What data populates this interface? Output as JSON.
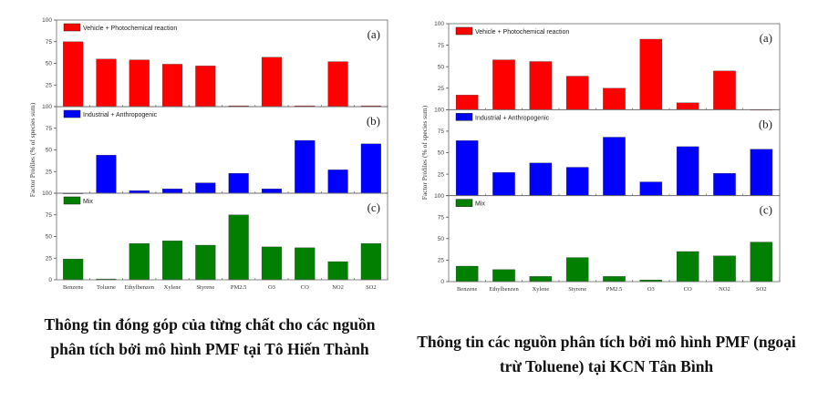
{
  "chart_data": [
    {
      "type": "bar",
      "ylabel": "Factor Profiles (% of species sum)",
      "ylim": [
        0,
        100
      ],
      "yticks": [
        "0",
        "25",
        "50",
        "75",
        "100"
      ],
      "categories": [
        "Benzene",
        "Toluene",
        "Ethylbenzen",
        "Xylene",
        "Styrene",
        "PM2.5",
        "O3",
        "CO",
        "NO2",
        "SO2"
      ],
      "series": [
        {
          "name": "Vehicle + Photochemical reaction",
          "panel": "(a)",
          "color": "#ff0000",
          "values": [
            75,
            55,
            54,
            49,
            47,
            1,
            57,
            1,
            52,
            1
          ]
        },
        {
          "name": "Industrial + Anthropogenic",
          "panel": "(b)",
          "color": "#0000ff",
          "values": [
            0,
            44,
            3,
            5,
            12,
            23,
            5,
            61,
            27,
            57
          ]
        },
        {
          "name": "Mix",
          "panel": "(c)",
          "color": "#007f00",
          "values": [
            24,
            1,
            42,
            45,
            40,
            75,
            38,
            37,
            21,
            42
          ]
        }
      ],
      "caption": "Thông tin đóng góp của từng chất cho các nguồn phân tích bởi mô hình PMF tại Tô Hiến Thành"
    },
    {
      "type": "bar",
      "ylabel": "Factor Profiles (% of species sum)",
      "ylim": [
        0,
        100
      ],
      "yticks": [
        "0",
        "25",
        "50",
        "75",
        "100"
      ],
      "categories": [
        "Benzene",
        "Ethylbenzen",
        "Xylene",
        "Styrene",
        "PM2.5",
        "O3",
        "CO",
        "NO2",
        "SO2"
      ],
      "series": [
        {
          "name": "Vehicle + Photochemical reaction",
          "panel": "(a)",
          "color": "#ff0000",
          "values": [
            17,
            58,
            56,
            39,
            25,
            82,
            8,
            45,
            0
          ]
        },
        {
          "name": "Industrial + Anthropogenic",
          "panel": "(b)",
          "color": "#0000ff",
          "values": [
            64,
            27,
            38,
            33,
            68,
            16,
            57,
            26,
            54
          ]
        },
        {
          "name": "Mix",
          "panel": "(c)",
          "color": "#007f00",
          "values": [
            18,
            14,
            6,
            28,
            6,
            2,
            35,
            30,
            46
          ]
        }
      ],
      "caption": "Thông tin các nguồn phân tích bởi mô hình PMF (ngoại trừ Toluene) tại KCN Tân Bình"
    }
  ]
}
